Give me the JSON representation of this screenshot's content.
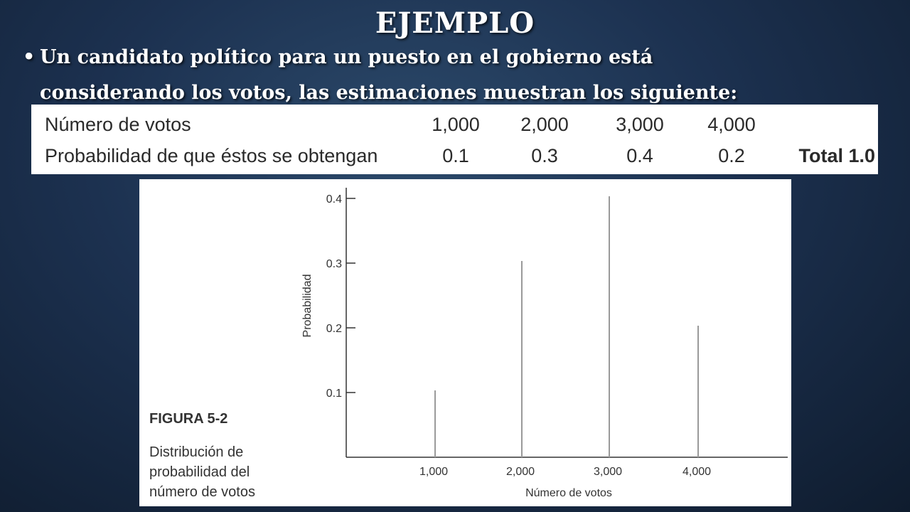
{
  "slide": {
    "title": "EJEMPLO",
    "bullet_marker": "•",
    "bullet_line1": "Un candidato político para un puesto  en el gobierno está",
    "bullet_line2": "considerando los votos, las estimaciones muestran los siguiente:"
  },
  "table": {
    "row1_label": "Número de votos",
    "row2_label": "Probabilidad de que éstos se obtengan",
    "votes": [
      "1,000",
      "2,000",
      "3,000",
      "4,000"
    ],
    "probabilities": [
      "0.1",
      "0.3",
      "0.4",
      "0.2"
    ],
    "total": "Total 1.0"
  },
  "figure": {
    "label": "FIGURA 5-2",
    "caption_lines": [
      "Distribución de",
      "probabilidad del",
      "número de votos"
    ]
  },
  "chart_data": {
    "type": "bar",
    "categories": [
      "1,000",
      "2,000",
      "3,000",
      "4,000"
    ],
    "values": [
      0.1,
      0.3,
      0.4,
      0.2
    ],
    "title": "",
    "xlabel": "Número de votos",
    "ylabel": "Probabilidad",
    "yticks": [
      0.1,
      0.2,
      0.3,
      0.4
    ],
    "ytick_labels": [
      "0.1",
      "0.2",
      "0.3",
      "0.4"
    ],
    "ylim": [
      0,
      0.4
    ],
    "grid": false,
    "colors": {
      "stem": "#9a9a9a",
      "axis": "#333333",
      "text": "#333333"
    }
  }
}
